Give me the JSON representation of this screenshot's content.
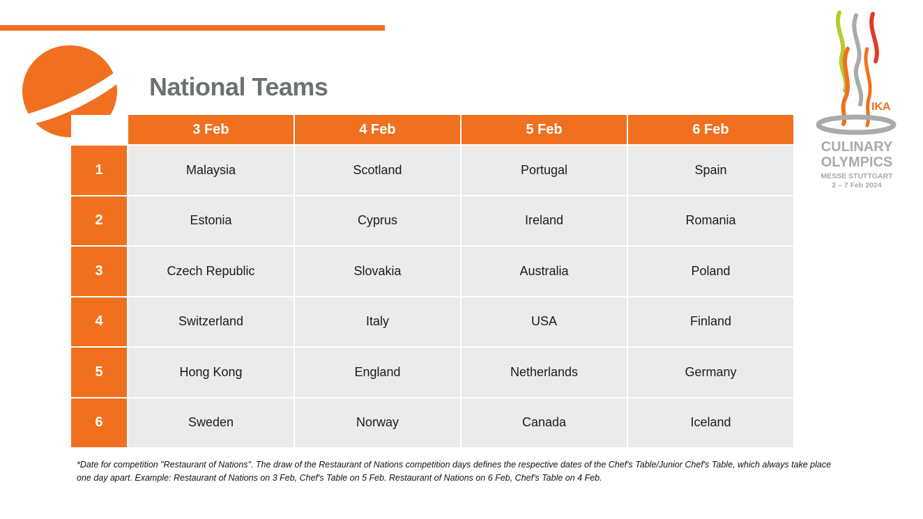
{
  "page": {
    "title": "National Teams",
    "accent_color": "#f07020",
    "text_gray": "#6b7271"
  },
  "schedule": {
    "dates": [
      "3 Feb",
      "4 Feb",
      "5 Feb",
      "6 Feb"
    ],
    "rows": [
      {
        "rank": "1",
        "teams": [
          "Malaysia",
          "Scotland",
          "Portugal",
          "Spain"
        ]
      },
      {
        "rank": "2",
        "teams": [
          "Estonia",
          "Cyprus",
          "Ireland",
          "Romania"
        ]
      },
      {
        "rank": "3",
        "teams": [
          "Czech Republic",
          "Slovakia",
          "Australia",
          "Poland"
        ]
      },
      {
        "rank": "4",
        "teams": [
          "Switzerland",
          "Italy",
          "USA",
          "Finland"
        ]
      },
      {
        "rank": "5",
        "teams": [
          "Hong Kong",
          "England",
          "Netherlands",
          "Germany"
        ]
      },
      {
        "rank": "6",
        "teams": [
          "Sweden",
          "Norway",
          "Canada",
          "Iceland"
        ]
      }
    ]
  },
  "footnote": "*Date for competition \"Restaurant of Nations\". The draw of the Restaurant of Nations competition days defines the respective dates of the Chef's Table/Junior Chef's Table, which always take place one day apart. Example: Restaurant of Nations on 3 Feb, Chef's Table on 5 Feb. Restaurant of Nations on 6 Feb, Chef's Table on 4 Feb.",
  "logo": {
    "ika": "IKA",
    "line1": "CULINARY",
    "line2": "OLYMPICS",
    "line3": "MESSE STUTTGART",
    "line4": "2 – 7 Feb 2024",
    "flame_colors": [
      "#b5cc2e",
      "#a6abab",
      "#e03a2a",
      "#f07020"
    ]
  }
}
